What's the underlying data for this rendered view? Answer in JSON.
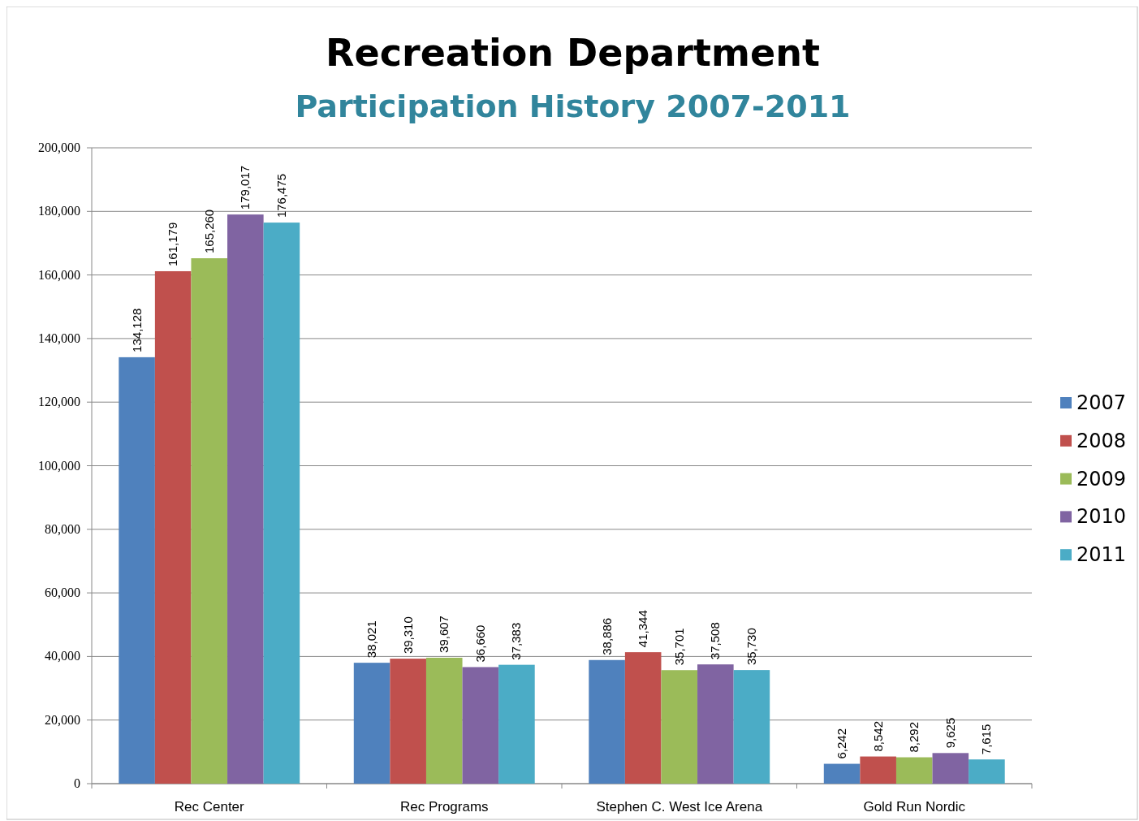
{
  "chart_data": {
    "type": "bar",
    "title": "Recreation Department",
    "subtitle": "Participation History 2007-2011",
    "categories": [
      "Rec Center",
      "Rec Programs",
      "Stephen C. West Ice Arena",
      "Gold Run Nordic"
    ],
    "series": [
      {
        "name": "2007",
        "color": "#4f81bd",
        "values": [
          134128,
          38021,
          38886,
          6242
        ],
        "value_labels": [
          "134,128",
          "38,021",
          "38,886",
          "6,242"
        ]
      },
      {
        "name": "2008",
        "color": "#c0504d",
        "values": [
          161179,
          39310,
          41344,
          8542
        ],
        "value_labels": [
          "161,179",
          "39,310",
          "41,344",
          "8,542"
        ]
      },
      {
        "name": "2009",
        "color": "#9bbb59",
        "values": [
          165260,
          39607,
          35701,
          8292
        ],
        "value_labels": [
          "165,260",
          "39,607",
          "35,701",
          "8,292"
        ]
      },
      {
        "name": "2010",
        "color": "#8064a2",
        "values": [
          179017,
          36660,
          37508,
          9625
        ],
        "value_labels": [
          "179,017",
          "36,660",
          "37,508",
          "9,625"
        ]
      },
      {
        "name": "2011",
        "color": "#4bacc6",
        "values": [
          176475,
          37383,
          35730,
          7615
        ],
        "value_labels": [
          "176,475",
          "37,383",
          "35,730",
          "7,615"
        ]
      }
    ],
    "ylim": [
      0,
      200000
    ],
    "yticks": [
      {
        "value": 0,
        "label": "0"
      },
      {
        "value": 20000,
        "label": "20,000"
      },
      {
        "value": 40000,
        "label": "40,000"
      },
      {
        "value": 60000,
        "label": "60,000"
      },
      {
        "value": 80000,
        "label": "80,000"
      },
      {
        "value": 100000,
        "label": "100,000"
      },
      {
        "value": 120000,
        "label": "120,000"
      },
      {
        "value": 140000,
        "label": "140,000"
      },
      {
        "value": 160000,
        "label": "160,000"
      },
      {
        "value": 180000,
        "label": "180,000"
      },
      {
        "value": 200000,
        "label": "200,000"
      }
    ],
    "grid": "y",
    "legend": "right"
  }
}
